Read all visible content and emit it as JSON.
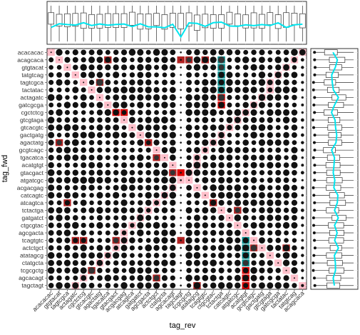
{
  "chart_data": {
    "type": "scatter",
    "subtype": "dot-matrix with marginal boxplots",
    "xlabel": "tag_rev",
    "ylabel": "tag_fwd",
    "x_categories": [
      "acacacac",
      "acagcaca",
      "gtgtacat",
      "tatgtcag",
      "tagtcgca",
      "tactatac",
      "actagatc",
      "gatcgcga",
      "cgctctcg",
      "gtcgtaga",
      "gtcacgtc",
      "gactgatg",
      "agactatg",
      "gcgtcagc",
      "tgacatca",
      "acatgtgt",
      "gtacgact",
      "atgatcgc",
      "acgacgag",
      "catcagtc",
      "atcagtca",
      "tctactga",
      "gatgatct",
      "ctgcgtac",
      "agcgacta",
      "tcagtgtc",
      "actctgct",
      "atatagcg",
      "ctatgcta",
      "tcgcgctg",
      "agcacagt",
      "tagctagt"
    ],
    "y_categories": [
      "acacacac",
      "acagcaca",
      "gtgtacat",
      "tatgtcag",
      "tagtcgca",
      "tactatac",
      "actagatc",
      "gatcgcga",
      "cgctctcg",
      "gtcgtaga",
      "gtcacgtc",
      "gactgatg",
      "agactatg",
      "gcgtcagc",
      "tgacatca",
      "acatgtgt",
      "gtacgact",
      "atgatcgc",
      "acgacgag",
      "catcagtc",
      "atcagtca",
      "tctactga",
      "gatgatct",
      "ctgcgtac",
      "agcgacta",
      "tcagtgtc",
      "actctgct",
      "atatagcg",
      "ctatgcta",
      "tcgcgctg",
      "agcacagt",
      "tagctagt"
    ],
    "x_tick_labels": [
      "acacacac",
      "gtgtacat",
      "tagtcgca",
      "actagatc",
      "cgctctcg",
      "gtcacgtc",
      "agactatg",
      "tgacatca",
      "gtacgact",
      "acgacgag",
      "atcagtca",
      "gatgatct",
      "agcgacta",
      "actctgct",
      "ctatgcta",
      "agcacagt",
      "tagctagt",
      "tcgcgctg",
      "atatagcg",
      "tcagtgtc",
      "ctgcgtac",
      "tctactga",
      "catcagtc",
      "atgatcgc",
      "acatgtgt",
      "gcgtcagc",
      "gactgatg",
      "gtcgtaga",
      "gatcgcga",
      "tactatac",
      "tatgtcag",
      "acagcaca"
    ],
    "cell_colors": {
      "pink": "#ffc0cb",
      "red": "#dd0000",
      "darkred": "#b22222",
      "teal": "#008b8b",
      "dot": "#111111",
      "box_line": "#333333",
      "median_line": "#00e5ee"
    },
    "highlight_cells": [
      {
        "x": "acacacac",
        "y": "acacacac",
        "color": "pink"
      },
      {
        "x": "gatcgcga",
        "y": "acagcaca",
        "color": "darkred"
      },
      {
        "x": "gtacgact",
        "y": "acagcaca",
        "color": "darkred"
      },
      {
        "x": "atgatcgc",
        "y": "acagcaca",
        "color": "darkred"
      },
      {
        "x": "catcagtc",
        "y": "acagcaca",
        "color": "darkred"
      },
      {
        "x": "tctactga",
        "y": "acagcaca",
        "color": "teal"
      },
      {
        "x": "tctactga",
        "y": "gtgtacat",
        "color": "teal"
      },
      {
        "x": "tctactga",
        "y": "tatgtcag",
        "color": "teal"
      },
      {
        "x": "tctactga",
        "y": "tagtcgca",
        "color": "teal"
      },
      {
        "x": "tctactga",
        "y": "tactatac",
        "color": "teal"
      },
      {
        "x": "tctactga",
        "y": "actagatc",
        "color": "red"
      },
      {
        "x": "tctactga",
        "y": "gatcgcga",
        "color": "red"
      },
      {
        "x": "gtcgtaga",
        "y": "cgctctcg",
        "color": "red"
      },
      {
        "x": "cgctctcg",
        "y": "cgctctcg",
        "color": "red"
      },
      {
        "x": "gtacgact",
        "y": "gtacgact",
        "color": "red"
      },
      {
        "x": "agactatg",
        "y": "agactatg",
        "color": "darkred"
      },
      {
        "x": "gcgtcagc",
        "y": "tgacatca",
        "color": "darkred"
      },
      {
        "x": "atcagtca",
        "y": "atcagtca",
        "color": "darkred"
      },
      {
        "x": "gtgtacat",
        "y": "atcagtca",
        "color": "darkred"
      },
      {
        "x": "acatgtgt",
        "y": "gtacgact",
        "color": "darkred"
      },
      {
        "x": "tcgcgctg",
        "y": "actctgct",
        "color": "darkred"
      },
      {
        "x": "tcagtgtc",
        "y": "actctgct",
        "color": "darkred"
      },
      {
        "x": "ctgcgtac",
        "y": "tctactga",
        "color": "darkred"
      },
      {
        "x": "tagtcgca",
        "y": "tcagtgtc",
        "color": "darkred"
      },
      {
        "x": "cgctctcg",
        "y": "tcagtgtc",
        "color": "darkred"
      },
      {
        "x": "gtacgact",
        "y": "tcagtgtc",
        "color": "darkred"
      },
      {
        "x": "tatgtcag",
        "y": "tcagtgtc",
        "color": "darkred"
      },
      {
        "x": "agcgacta",
        "y": "tcagtgtc",
        "color": "teal"
      },
      {
        "x": "agcgacta",
        "y": "actctgct",
        "color": "teal"
      },
      {
        "x": "agcgacta",
        "y": "atatagcg",
        "color": "teal"
      },
      {
        "x": "agcgacta",
        "y": "ctatgcta",
        "color": "teal"
      },
      {
        "x": "agcgacta",
        "y": "tcgcgctg",
        "color": "red"
      },
      {
        "x": "agcgacta",
        "y": "agcacagt",
        "color": "red"
      },
      {
        "x": "agcgacta",
        "y": "tagctagt",
        "color": "red"
      },
      {
        "x": "tactatac",
        "y": "tcgcgctg",
        "color": "darkred"
      },
      {
        "x": "acgacgag",
        "y": "tagctagt",
        "color": "darkred"
      },
      {
        "x": "gcgtcagc",
        "y": "agcacagt",
        "color": "darkred"
      },
      {
        "x": "acagcaca",
        "y": "agactatg",
        "color": "darkred"
      },
      {
        "x": "actagatc",
        "y": "tagtcgca",
        "color": "darkred"
      }
    ],
    "small_dot_columns": [
      "gtacgact"
    ],
    "top_margin": {
      "type": "boxplot",
      "per": "x_categories"
    },
    "right_margin": {
      "type": "boxplot",
      "per": "y_categories"
    },
    "grid": true
  }
}
